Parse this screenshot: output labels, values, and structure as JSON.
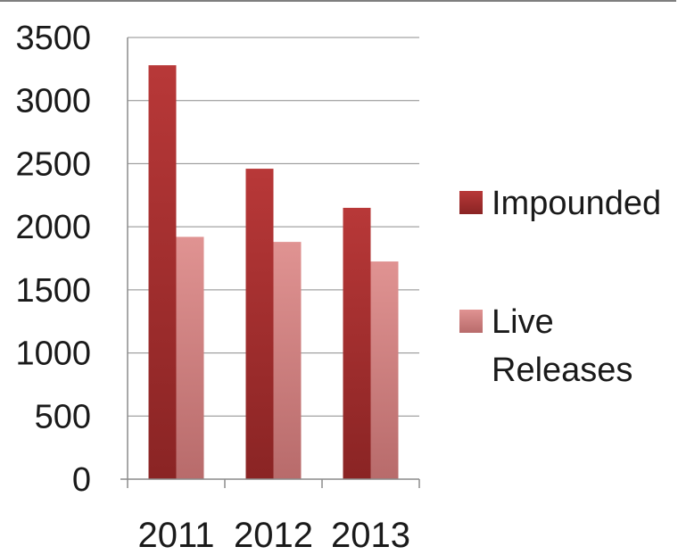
{
  "chart_data": {
    "type": "bar",
    "categories": [
      "2011",
      "2012",
      "2013"
    ],
    "series": [
      {
        "name": "Impounded",
        "values": [
          3280,
          2460,
          2150
        ],
        "color": "#9e2a2b"
      },
      {
        "name": "Live Releases",
        "values": [
          1920,
          1880,
          1725
        ],
        "color": "#d98584"
      }
    ],
    "yticks": [
      "0",
      "500",
      "1000",
      "1500",
      "2000",
      "2500",
      "3000",
      "3500"
    ],
    "ylim": [
      0,
      3500
    ],
    "grid": true,
    "legend": {
      "position": "right",
      "entries": [
        {
          "lines": [
            "Impounded"
          ]
        },
        {
          "lines": [
            "Live",
            "Releases"
          ]
        }
      ]
    },
    "title": "",
    "xlabel": "",
    "ylabel": ""
  }
}
